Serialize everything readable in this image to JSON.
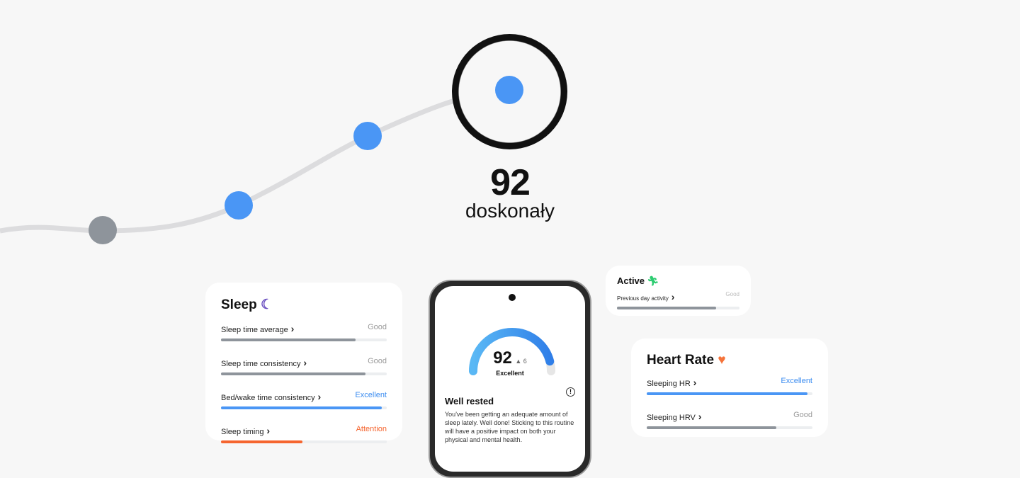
{
  "hero": {
    "score": "92",
    "label": "doskonały",
    "accent": "#4a96f5",
    "past_point": "#8e949b"
  },
  "sleep": {
    "title": "Sleep",
    "icon": "moon-icon",
    "items": [
      {
        "label": "Sleep time average",
        "status": "Good",
        "value": 0.81,
        "color": "#8e949b",
        "status_color": "#999999"
      },
      {
        "label": "Sleep time consistency",
        "status": "Good",
        "value": 0.87,
        "color": "#8e949b",
        "status_color": "#999999"
      },
      {
        "label": "Bed/wake time consistency",
        "status": "Excellent",
        "value": 0.97,
        "color": "#4a96f5",
        "status_color": "#3b8cf0"
      },
      {
        "label": "Sleep timing",
        "status": "Attention",
        "value": 0.49,
        "color": "#f5652f",
        "status_color": "#f5652f"
      }
    ]
  },
  "phone": {
    "score": "92",
    "delta": "▲ 6",
    "rating": "Excellent",
    "gauge_value": 0.92,
    "title": "Well rested",
    "body": "You've been getting an adequate amount of sleep lately. Well done! Sticking to this routine will have a positive impact on both your physical and mental health."
  },
  "active": {
    "title": "Active",
    "icon": "running-icon",
    "items": [
      {
        "label": "Previous day activity",
        "status": "Good",
        "value": 0.81,
        "color": "#8e949b",
        "status_color": "#bbbbbb"
      }
    ]
  },
  "heart": {
    "title": "Heart Rate",
    "icon": "heart-icon",
    "items": [
      {
        "label": "Sleeping HR",
        "status": "Excellent",
        "value": 0.97,
        "color": "#4a96f5",
        "status_color": "#3b8cf0"
      },
      {
        "label": "Sleeping HRV",
        "status": "Good",
        "value": 0.78,
        "color": "#8e949b",
        "status_color": "#999999"
      }
    ]
  }
}
